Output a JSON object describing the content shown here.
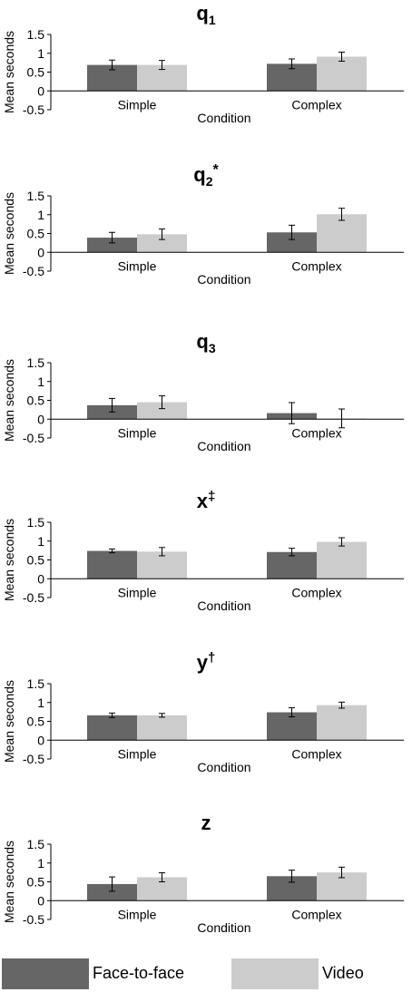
{
  "legend": {
    "series": [
      {
        "name": "Face-to-face",
        "color": "#666666"
      },
      {
        "name": "Video",
        "color": "#cccccc"
      }
    ]
  },
  "chart_data": [
    {
      "type": "bar",
      "title": "q",
      "title_sub": "1",
      "title_sup": "",
      "xlabel": "Condition",
      "ylabel": "Mean seconds",
      "ylim": [
        -0.5,
        1.5
      ],
      "yticks": [
        "1.5",
        "1",
        "0.5",
        "0",
        "-0.5"
      ],
      "categories": [
        "Simple",
        "Complex"
      ],
      "series": [
        {
          "name": "Face-to-face",
          "values": [
            0.69,
            0.72
          ],
          "errors": [
            0.13,
            0.13
          ]
        },
        {
          "name": "Video",
          "values": [
            0.69,
            0.91
          ],
          "errors": [
            0.12,
            0.12
          ]
        }
      ]
    },
    {
      "type": "bar",
      "title": "q",
      "title_sub": "2",
      "title_sup": "*",
      "xlabel": "Condition",
      "ylabel": "Mean seconds",
      "ylim": [
        -0.5,
        1.5
      ],
      "yticks": [
        "1.5",
        "1",
        "0.5",
        "0",
        "-0.5"
      ],
      "categories": [
        "Simple",
        "Complex"
      ],
      "series": [
        {
          "name": "Face-to-face",
          "values": [
            0.39,
            0.53
          ],
          "errors": [
            0.14,
            0.19
          ]
        },
        {
          "name": "Video",
          "values": [
            0.48,
            1.01
          ],
          "errors": [
            0.14,
            0.16
          ]
        }
      ]
    },
    {
      "type": "bar",
      "title": "q",
      "title_sub": "3",
      "title_sup": "",
      "xlabel": "Condition",
      "ylabel": "Mean seconds",
      "ylim": [
        -0.5,
        1.5
      ],
      "yticks": [
        "1.5",
        "1",
        "0.5",
        "0",
        "-0.5"
      ],
      "categories": [
        "Simple",
        "Complex"
      ],
      "series": [
        {
          "name": "Face-to-face",
          "values": [
            0.37,
            0.16
          ],
          "errors": [
            0.18,
            0.28
          ]
        },
        {
          "name": "Video",
          "values": [
            0.45,
            0.02
          ],
          "errors": [
            0.17,
            0.25
          ]
        }
      ]
    },
    {
      "type": "bar",
      "title": "x",
      "title_sub": "",
      "title_sup": "‡",
      "xlabel": "Condition",
      "ylabel": "Mean seconds",
      "ylim": [
        -0.5,
        1.5
      ],
      "yticks": [
        "1.5",
        "1",
        "0.5",
        "0",
        "-0.5"
      ],
      "categories": [
        "Simple",
        "Complex"
      ],
      "series": [
        {
          "name": "Face-to-face",
          "values": [
            0.74,
            0.71
          ],
          "errors": [
            0.05,
            0.1
          ]
        },
        {
          "name": "Video",
          "values": [
            0.72,
            0.98
          ],
          "errors": [
            0.11,
            0.11
          ]
        }
      ]
    },
    {
      "type": "bar",
      "title": "y",
      "title_sub": "",
      "title_sup": "†",
      "xlabel": "Condition",
      "ylabel": "Mean seconds",
      "ylim": [
        -0.5,
        1.5
      ],
      "yticks": [
        "1.5",
        "1",
        "0.5",
        "0",
        "-0.5"
      ],
      "categories": [
        "Simple",
        "Complex"
      ],
      "series": [
        {
          "name": "Face-to-face",
          "values": [
            0.66,
            0.74
          ],
          "errors": [
            0.06,
            0.12
          ]
        },
        {
          "name": "Video",
          "values": [
            0.66,
            0.93
          ],
          "errors": [
            0.05,
            0.08
          ]
        }
      ]
    },
    {
      "type": "bar",
      "title": "z",
      "title_sub": "",
      "title_sup": "",
      "xlabel": "Condition",
      "ylabel": "Mean seconds",
      "ylim": [
        -0.5,
        1.5
      ],
      "yticks": [
        "1.5",
        "1",
        "0.5",
        "0",
        "-0.5"
      ],
      "categories": [
        "Simple",
        "Complex"
      ],
      "series": [
        {
          "name": "Face-to-face",
          "values": [
            0.44,
            0.65
          ],
          "errors": [
            0.19,
            0.16
          ]
        },
        {
          "name": "Video",
          "values": [
            0.62,
            0.75
          ],
          "errors": [
            0.12,
            0.14
          ]
        }
      ]
    }
  ]
}
